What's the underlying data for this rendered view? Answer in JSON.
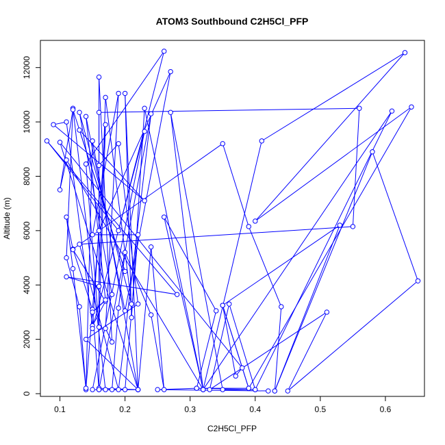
{
  "chart_data": {
    "type": "line",
    "title": "ATOM3 Southbound C2H5Cl_PFP",
    "xlabel": "C2H5Cl_PFP",
    "ylabel": "Altitude (m)",
    "xlim": [
      0.07,
      0.66
    ],
    "ylim": [
      -100,
      13000
    ],
    "x_ticks": [
      0.1,
      0.2,
      0.3,
      0.4,
      0.5,
      0.6
    ],
    "x_tick_labels": [
      "0.1",
      "0.2",
      "0.3",
      "0.4",
      "0.5",
      "0.6"
    ],
    "y_ticks": [
      0,
      2000,
      4000,
      6000,
      8000,
      10000,
      12000
    ],
    "y_tick_labels": [
      "0",
      "2000",
      "4000",
      "6000",
      "8000",
      "10000",
      "12000"
    ],
    "grid": false,
    "series": [
      {
        "color": "#0000ff",
        "marker": "open-circle",
        "points": [
          [
            0.43,
            100
          ],
          [
            0.44,
            3200
          ],
          [
            0.39,
            6150
          ],
          [
            0.35,
            9200
          ],
          [
            0.12,
            5320
          ],
          [
            0.15,
            3100
          ],
          [
            0.16,
            150
          ],
          [
            0.18,
            150
          ],
          [
            0.19,
            3150
          ],
          [
            0.2,
            5200
          ],
          [
            0.24,
            2900
          ],
          [
            0.26,
            150
          ],
          [
            0.24,
            5400
          ],
          [
            0.22,
            150
          ],
          [
            0.15,
            9300
          ],
          [
            0.14,
            150
          ],
          [
            0.13,
            3200
          ],
          [
            0.11,
            5000
          ],
          [
            0.12,
            10500
          ],
          [
            0.17,
            150
          ],
          [
            0.2,
            150
          ],
          [
            0.22,
            5850
          ],
          [
            0.15,
            5850
          ],
          [
            0.19,
            11050
          ],
          [
            0.17,
            2400
          ],
          [
            0.18,
            1900
          ],
          [
            0.16,
            11650
          ],
          [
            0.16,
            200
          ],
          [
            0.22,
            150
          ],
          [
            0.2,
            11050
          ],
          [
            0.21,
            2800
          ],
          [
            0.23,
            10500
          ],
          [
            0.32,
            150
          ],
          [
            0.41,
            9300
          ],
          [
            0.63,
            12550
          ],
          [
            0.4,
            6350
          ],
          [
            0.64,
            10550
          ],
          [
            0.39,
            200
          ],
          [
            0.35,
            3250
          ],
          [
            0.53,
            6200
          ],
          [
            0.43,
            100
          ],
          [
            0.58,
            8900
          ],
          [
            0.65,
            4150
          ],
          [
            0.45,
            100
          ],
          [
            0.51,
            3000
          ],
          [
            0.33,
            150
          ],
          [
            0.36,
            3300
          ],
          [
            0.4,
            150
          ],
          [
            0.31,
            200
          ],
          [
            0.34,
            3050
          ],
          [
            0.26,
            6500
          ],
          [
            0.32,
            150
          ],
          [
            0.61,
            10400
          ],
          [
            0.4,
            150
          ],
          [
            0.35,
            150
          ],
          [
            0.27,
            10350
          ],
          [
            0.32,
            150
          ],
          [
            0.11,
            8600
          ],
          [
            0.1,
            7500
          ],
          [
            0.12,
            10450
          ],
          [
            0.2,
            4500
          ],
          [
            0.13,
            9700
          ],
          [
            0.23,
            7100
          ],
          [
            0.09,
            9900
          ],
          [
            0.11,
            10000
          ],
          [
            0.15,
            2500
          ],
          [
            0.17,
            3400
          ],
          [
            0.12,
            5300
          ],
          [
            0.11,
            6500
          ],
          [
            0.12,
            4600
          ],
          [
            0.14,
            200
          ],
          [
            0.16,
            6000
          ],
          [
            0.27,
            11850
          ],
          [
            0.2,
            3050
          ],
          [
            0.14,
            10200
          ],
          [
            0.17,
            3450
          ],
          [
            0.15,
            3000
          ],
          [
            0.18,
            3650
          ],
          [
            0.13,
            10350
          ],
          [
            0.21,
            3300
          ],
          [
            0.17,
            10900
          ],
          [
            0.16,
            3950
          ],
          [
            0.11,
            4300
          ],
          [
            0.28,
            3650
          ],
          [
            0.08,
            9300
          ],
          [
            0.19,
            6000
          ],
          [
            0.26,
            12600
          ],
          [
            0.14,
            8450
          ],
          [
            0.16,
            2450
          ],
          [
            0.17,
            9900
          ],
          [
            0.15,
            2400
          ],
          [
            0.23,
            9650
          ],
          [
            0.15,
            150
          ],
          [
            0.22,
            150
          ],
          [
            0.14,
            2000
          ],
          [
            0.22,
            3300
          ],
          [
            0.19,
            9200
          ],
          [
            0.16,
            8400
          ],
          [
            0.16,
            10350
          ],
          [
            0.56,
            10500
          ],
          [
            0.55,
            6150
          ],
          [
            0.13,
            5500
          ],
          [
            0.19,
            150
          ],
          [
            0.24,
            10300
          ],
          [
            0.16,
            150
          ],
          [
            0.22,
            150
          ],
          [
            0.1,
            9250
          ],
          [
            0.38,
            950
          ],
          [
            0.37,
            650
          ],
          [
            0.35,
            3250
          ],
          [
            0.39,
            200
          ],
          [
            0.31,
            200
          ],
          [
            0.25,
            150
          ],
          [
            0.42,
            100
          ]
        ]
      }
    ]
  }
}
